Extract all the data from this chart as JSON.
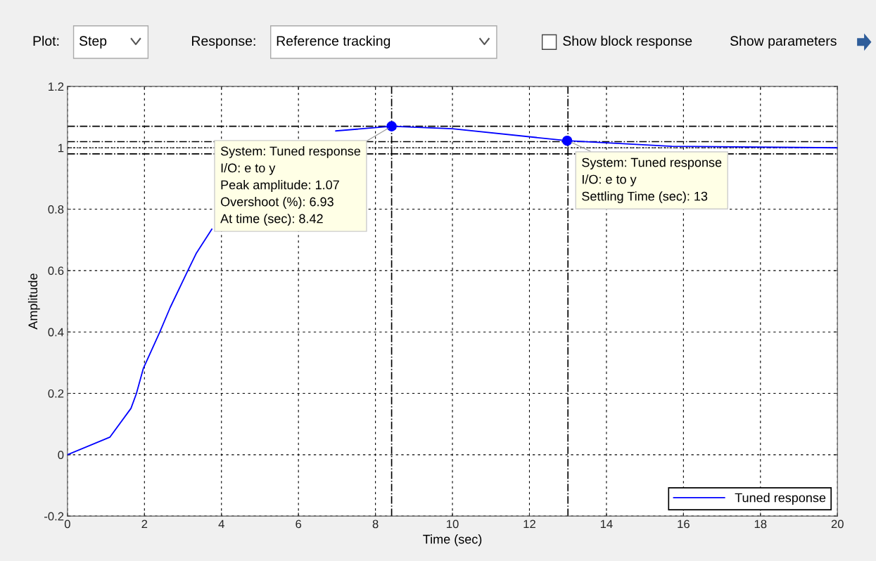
{
  "chart_data": {
    "type": "line",
    "xlabel": "Time (sec)",
    "ylabel": "Amplitude",
    "xlim": [
      0,
      20
    ],
    "xticks": [
      0,
      2,
      4,
      6,
      8,
      10,
      12,
      14,
      16,
      18,
      20
    ],
    "ylim": [
      -0.2,
      1.2
    ],
    "yticks": [
      -0.2,
      0,
      0.2,
      0.4,
      0.6,
      0.8,
      1,
      1.2
    ],
    "grid": true,
    "legend": "bottom right",
    "marker": "none",
    "line_style": "solid",
    "series": [
      {
        "name": "Tuned response",
        "color": "#0000ff",
        "x": [
          0,
          1.1,
          1.65,
          1.79,
          1.97,
          2.4,
          2.67,
          3.09,
          3.35,
          3.75,
          5,
          6.97,
          8.42,
          10,
          12.98,
          15.7,
          20
        ],
        "values": [
          0,
          0.057,
          0.151,
          0.199,
          0.281,
          0.4,
          0.48,
          0.59,
          0.657,
          0.735,
          null,
          1.055,
          1.07,
          1.062,
          1.023,
          1.005,
          1.0
        ]
      },
      {
        "type": "scatter",
        "marker": "circle",
        "color": "#0000ff",
        "x": [
          8.42,
          12.98
        ],
        "values": [
          1.07,
          1.023
        ]
      }
    ],
    "ref_lines": [
      {
        "axis": "y",
        "value": 1.07,
        "color": "#000000",
        "line_style": "dashdot"
      },
      {
        "axis": "y",
        "value": 1.02,
        "color": "#000000",
        "line_style": "dashdot"
      },
      {
        "axis": "y",
        "value": 0.98,
        "color": "#000000",
        "line_style": "dashdot"
      },
      {
        "axis": "y",
        "value": 1.0,
        "color": "#000000",
        "line_style": "dotted"
      },
      {
        "axis": "x",
        "value": 8.42,
        "color": "#000000",
        "line_style": "dashdot"
      },
      {
        "axis": "x",
        "value": 13,
        "color": "#000000",
        "line_style": "dashdot"
      }
    ],
    "annotations": [
      {
        "text": "System: Tuned response\nI/O: e to y\nPeak amplitude: 1.07\nOvershoot (%): 6.93\nAt time (sec): 8.42",
        "x": 8.42,
        "y": 1.07
      },
      {
        "text": "System: Tuned response\nI/O: e to y\nSettling Time (sec): 13",
        "x": 13,
        "y": 1.023
      },
      "Plot:",
      "Step",
      "Response:",
      "Reference tracking",
      "Show block response",
      "Show parameters"
    ]
  }
}
